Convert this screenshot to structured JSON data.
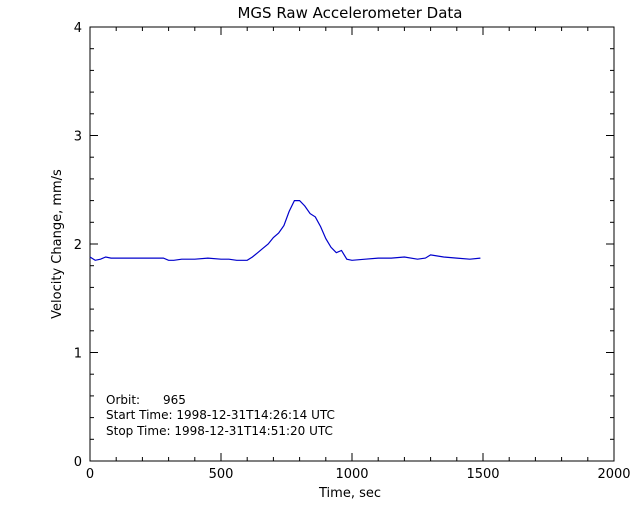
{
  "chart_data": {
    "type": "line",
    "title": "MGS Raw Accelerometer Data",
    "xlabel": "Time, sec",
    "ylabel": "Velocity Change, mm/s",
    "xlim": [
      0,
      2000
    ],
    "ylim": [
      0,
      4
    ],
    "xticks": [
      0,
      500,
      1000,
      1500,
      2000
    ],
    "yticks": [
      0,
      1,
      2,
      3,
      4
    ],
    "grid": false,
    "series": [
      {
        "color": "#0000cc",
        "x": [
          0,
          20,
          40,
          60,
          80,
          100,
          150,
          200,
          250,
          280,
          300,
          320,
          350,
          400,
          450,
          500,
          530,
          560,
          580,
          600,
          620,
          640,
          660,
          680,
          700,
          720,
          740,
          760,
          780,
          800,
          820,
          840,
          860,
          880,
          900,
          920,
          940,
          960,
          980,
          1000,
          1050,
          1100,
          1150,
          1200,
          1250,
          1280,
          1300,
          1350,
          1400,
          1450,
          1490
        ],
        "y": [
          1.88,
          1.85,
          1.86,
          1.88,
          1.87,
          1.87,
          1.87,
          1.87,
          1.87,
          1.87,
          1.85,
          1.85,
          1.86,
          1.86,
          1.87,
          1.86,
          1.86,
          1.85,
          1.85,
          1.85,
          1.88,
          1.92,
          1.96,
          2.0,
          2.06,
          2.1,
          2.17,
          2.3,
          2.4,
          2.4,
          2.35,
          2.28,
          2.25,
          2.16,
          2.05,
          1.97,
          1.92,
          1.94,
          1.86,
          1.85,
          1.86,
          1.87,
          1.87,
          1.88,
          1.86,
          1.87,
          1.9,
          1.88,
          1.87,
          1.86,
          1.87
        ]
      }
    ],
    "annotations": [
      "Orbit:      965",
      "Start Time: 1998-12-31T14:26:14 UTC",
      "Stop Time: 1998-12-31T14:51:20 UTC"
    ]
  }
}
